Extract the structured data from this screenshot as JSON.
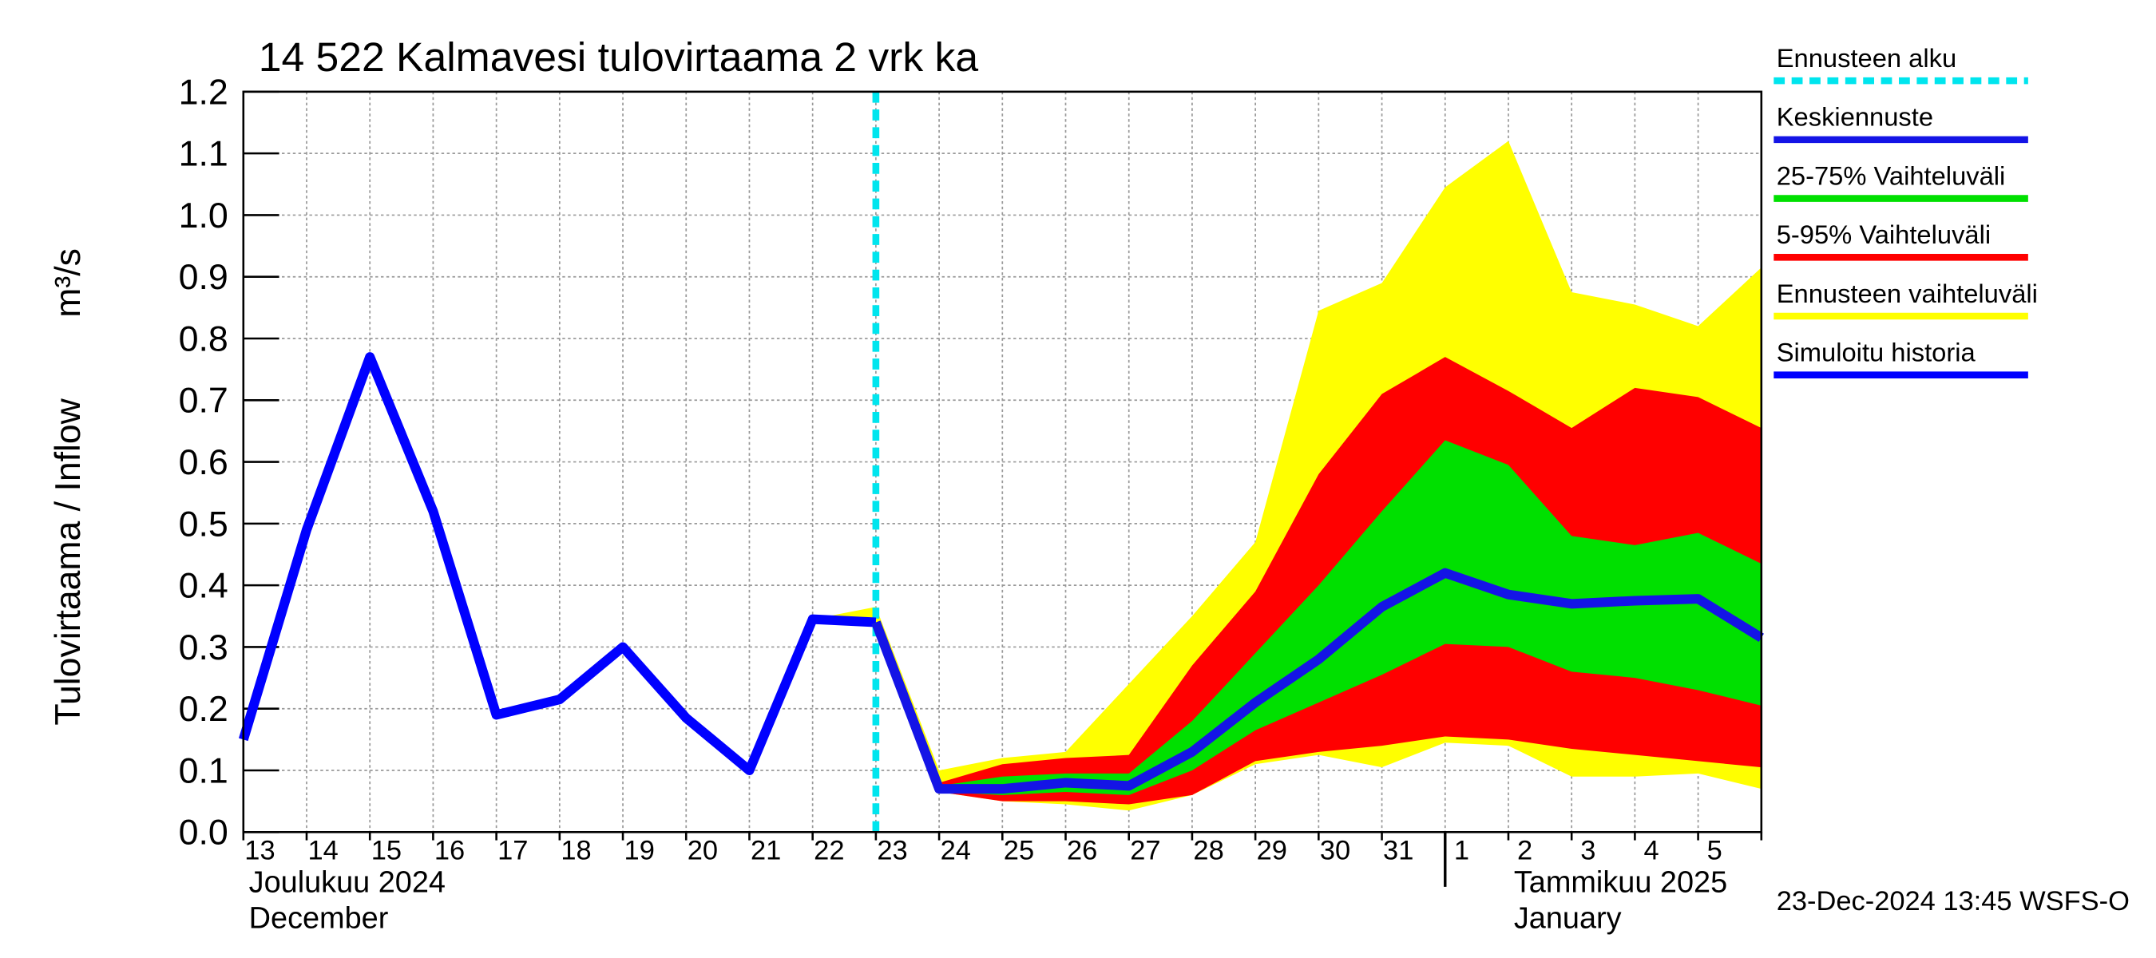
{
  "chart_data": {
    "type": "forecast",
    "title": "14 522 Kalmavesi tulovirtaama 2 vrk ka",
    "y_label": "Tulovirtaama / Inflow",
    "y_unit": "m³/s",
    "categories": [
      "13",
      "14",
      "15",
      "16",
      "17",
      "18",
      "19",
      "20",
      "21",
      "22",
      "23",
      "24",
      "25",
      "26",
      "27",
      "28",
      "29",
      "30",
      "31",
      "1",
      "2",
      "3",
      "4",
      "5",
      null
    ],
    "month_labels": [
      {
        "at": "13",
        "lines": [
          "Joulukuu  2024",
          "December"
        ]
      },
      {
        "at": "1",
        "lines": [
          "Tammikuu  2025",
          "January"
        ]
      }
    ],
    "forecast_start": "23",
    "forecast_start_name": "Ennusteen alku",
    "forecast_start_color": "#00e5ee",
    "ylim": [
      0,
      1.2
    ],
    "yticks": [
      {
        "value": 0,
        "label": "0.0"
      },
      0.1,
      0.2,
      0.3,
      0.4,
      0.5,
      0.6,
      0.7,
      0.8,
      0.9,
      {
        "value": 1,
        "label": "1.0"
      },
      1.1,
      1.2
    ],
    "grid": true,
    "series": [
      {
        "name": "Keskiennuste",
        "color": "#1414e6",
        "values": [
          null,
          null,
          null,
          null,
          null,
          null,
          null,
          null,
          null,
          null,
          0.34,
          0.07,
          0.07,
          0.08,
          0.075,
          0.13,
          0.21,
          0.28,
          0.365,
          0.42,
          0.385,
          0.37,
          0.375,
          0.378,
          0.315
        ]
      },
      {
        "name": "Simuloitu historia",
        "color": "#0000ff",
        "values": [
          0.15,
          0.49,
          0.77,
          0.52,
          0.19,
          0.215,
          0.3,
          0.185,
          0.1,
          0.345,
          0.34,
          null,
          null,
          null,
          null,
          null,
          null,
          null,
          null,
          null,
          null,
          null,
          null,
          null,
          null
        ]
      }
    ],
    "bands": [
      {
        "name": "25-75% Vaihteluväli",
        "color": "#00e000",
        "upper": [
          null,
          null,
          null,
          null,
          null,
          null,
          null,
          null,
          null,
          null,
          0.34,
          0.075,
          0.09,
          0.095,
          0.095,
          0.18,
          0.29,
          0.4,
          0.52,
          0.635,
          0.595,
          0.48,
          0.465,
          0.485,
          0.435
        ],
        "lower": [
          null,
          null,
          null,
          null,
          null,
          null,
          null,
          null,
          null,
          null,
          0.34,
          0.065,
          0.06,
          0.065,
          0.06,
          0.1,
          0.165,
          0.21,
          0.255,
          0.305,
          0.3,
          0.26,
          0.25,
          0.23,
          0.205
        ]
      },
      {
        "name": "5-95% Vaihteluväli",
        "color": "#ff0000",
        "upper": [
          null,
          null,
          null,
          null,
          null,
          null,
          null,
          null,
          null,
          null,
          0.34,
          0.08,
          0.11,
          0.12,
          0.125,
          0.27,
          0.39,
          0.58,
          0.71,
          0.77,
          0.715,
          0.655,
          0.72,
          0.705,
          0.655
        ],
        "lower": [
          null,
          null,
          null,
          null,
          null,
          null,
          null,
          null,
          null,
          null,
          0.34,
          0.065,
          0.05,
          0.05,
          0.045,
          0.06,
          0.115,
          0.13,
          0.14,
          0.155,
          0.15,
          0.135,
          0.125,
          0.115,
          0.105
        ]
      },
      {
        "name": "Ennusteen vaihteluväli",
        "color": "#ffff00",
        "upper": [
          null,
          null,
          null,
          null,
          null,
          null,
          null,
          null,
          null,
          0.345,
          0.365,
          0.1,
          0.12,
          0.13,
          0.24,
          0.35,
          0.47,
          0.845,
          0.89,
          1.045,
          1.12,
          0.875,
          0.855,
          0.82,
          0.915
        ],
        "lower": [
          null,
          null,
          null,
          null,
          null,
          null,
          null,
          null,
          null,
          0.345,
          0.34,
          0.065,
          0.05,
          0.045,
          0.035,
          0.06,
          0.11,
          0.125,
          0.105,
          0.145,
          0.14,
          0.09,
          0.09,
          0.095,
          0.07
        ]
      }
    ],
    "footer": "23-Dec-2024 13:45 WSFS-O"
  }
}
